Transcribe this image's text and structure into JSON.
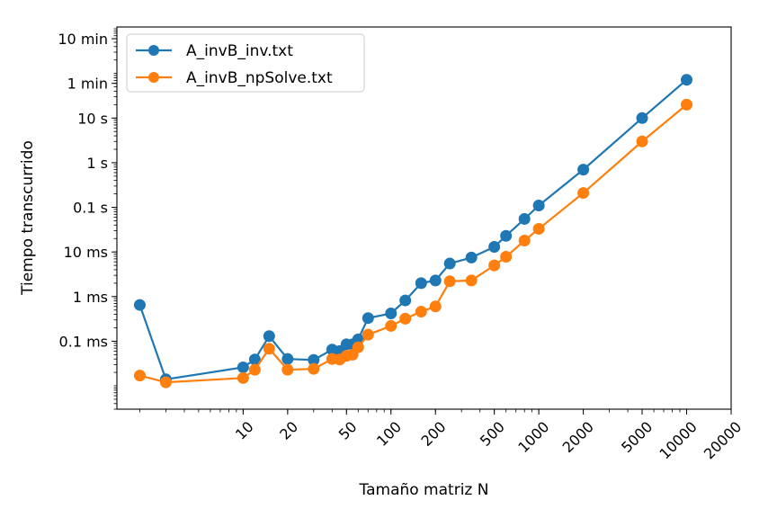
{
  "chart_data": {
    "type": "line",
    "xlabel": "Tamaño matriz N",
    "ylabel": "Tiempo transcurrido",
    "xscale": "log",
    "yscale": "log",
    "xlim": [
      1.4,
      20000
    ],
    "ylim_seconds": [
      3e-06,
      1100
    ],
    "grid": false,
    "legend_position": "top-left",
    "x_ticks": [
      10,
      20,
      50,
      100,
      200,
      500,
      1000,
      2000,
      5000,
      10000,
      20000
    ],
    "x_tick_labels": [
      "10",
      "20",
      "50",
      "100",
      "200",
      "500",
      "1000",
      "2000",
      "5000",
      "10000",
      "20000"
    ],
    "y_ticks_seconds": [
      0.0001,
      0.001,
      0.01,
      0.1,
      1,
      10,
      60,
      600
    ],
    "y_tick_labels": [
      "0.1 ms",
      "1 ms",
      "10 ms",
      "0.1 s",
      "1 s",
      "10 s",
      "1 min",
      "10 min"
    ],
    "series": [
      {
        "name": "A_invB_inv.txt",
        "color": "#1f77b4",
        "x": [
          2,
          3,
          10,
          12,
          15,
          20,
          30,
          40,
          45,
          50,
          55,
          60,
          70,
          100,
          125,
          160,
          200,
          250,
          350,
          500,
          600,
          800,
          1000,
          2000,
          5000,
          10000
        ],
        "y": [
          0.00065,
          1.4e-05,
          2.6e-05,
          3.9e-05,
          0.00013,
          4e-05,
          3.8e-05,
          6.5e-05,
          6e-05,
          8.5e-05,
          8.5e-05,
          0.00011,
          0.00033,
          0.00042,
          0.00082,
          0.002,
          0.0023,
          0.0055,
          0.0075,
          0.013,
          0.023,
          0.055,
          0.11,
          0.7,
          10,
          72
        ]
      },
      {
        "name": "A_invB_npSolve.txt",
        "color": "#ff7f0e",
        "x": [
          2,
          3,
          10,
          12,
          15,
          20,
          30,
          40,
          45,
          50,
          55,
          60,
          70,
          100,
          125,
          160,
          200,
          250,
          350,
          500,
          600,
          800,
          1000,
          2000,
          5000,
          10000
        ],
        "y": [
          1.7e-05,
          1.2e-05,
          1.5e-05,
          2.3e-05,
          6.8e-05,
          2.3e-05,
          2.4e-05,
          4e-05,
          3.9e-05,
          4.7e-05,
          5e-05,
          7.3e-05,
          0.00014,
          0.00022,
          0.00032,
          0.00046,
          0.0006,
          0.0022,
          0.0023,
          0.005,
          0.0078,
          0.018,
          0.033,
          0.21,
          3,
          20
        ]
      }
    ]
  }
}
